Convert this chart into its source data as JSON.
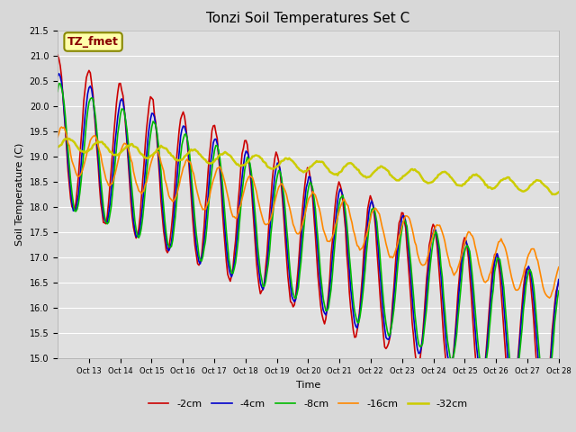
{
  "title": "Tonzi Soil Temperatures Set C",
  "xlabel": "Time",
  "ylabel": "Soil Temperature (C)",
  "ylim": [
    15.0,
    21.5
  ],
  "yticks": [
    15.0,
    15.5,
    16.0,
    16.5,
    17.0,
    17.5,
    18.0,
    18.5,
    19.0,
    19.5,
    20.0,
    20.5,
    21.0,
    21.5
  ],
  "xtick_labels": [
    "Oct 13",
    "Oct 14",
    "Oct 15",
    "Oct 16",
    "Oct 17",
    "Oct 18",
    "Oct 19",
    "Oct 20",
    "Oct 21",
    "Oct 22",
    "Oct 23",
    "Oct 24",
    "Oct 25",
    "Oct 26",
    "Oct 27",
    "Oct 28"
  ],
  "series_colors": [
    "#cc0000",
    "#0000cc",
    "#00bb00",
    "#ff8800",
    "#cccc00"
  ],
  "series_labels": [
    "-2cm",
    "-4cm",
    "-8cm",
    "-16cm",
    "-32cm"
  ],
  "series_linewidths": [
    1.2,
    1.2,
    1.2,
    1.2,
    1.8
  ],
  "legend_label": "TZ_fmet",
  "legend_bg": "#ffffaa",
  "legend_border": "#888800",
  "legend_text_color": "#880000",
  "fig_bg": "#d8d8d8",
  "plot_bg": "#e0e0e0",
  "grid_color": "#ffffff",
  "title_fontsize": 11,
  "axis_fontsize": 8,
  "tick_fontsize": 7,
  "n_days": 16,
  "hours_per_day": 24,
  "trend_starts": [
    19.55,
    19.35,
    19.25,
    19.15,
    19.25
  ],
  "trend_slopes": [
    0.28,
    0.255,
    0.245,
    0.16,
    0.055
  ],
  "amplitudes": [
    1.45,
    1.3,
    1.2,
    0.45,
    0.12
  ],
  "phases": [
    0.0,
    0.25,
    0.5,
    1.0,
    2.2
  ],
  "noise_scales": [
    0.03,
    0.02,
    0.02,
    0.015,
    0.01
  ]
}
